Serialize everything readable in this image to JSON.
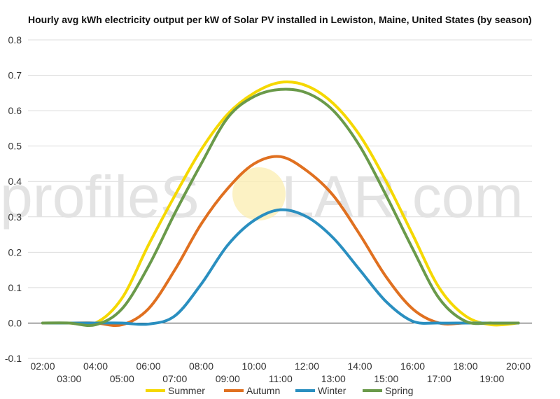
{
  "chart_data": {
    "type": "line",
    "title": "Hourly avg kWh electricity output per kW of Solar PV installed in Lewiston, Maine, United States (by season)",
    "xlabel": "",
    "ylabel": "",
    "ylim": [
      -0.1,
      0.8
    ],
    "yticks": [
      "-0.1",
      "0.0",
      "0.1",
      "0.2",
      "0.3",
      "0.4",
      "0.5",
      "0.6",
      "0.7",
      "0.8"
    ],
    "categories": [
      "02:00",
      "03:00",
      "04:00",
      "05:00",
      "06:00",
      "07:00",
      "08:00",
      "09:00",
      "10:00",
      "11:00",
      "12:00",
      "13:00",
      "14:00",
      "15:00",
      "16:00",
      "17:00",
      "18:00",
      "19:00",
      "20:00"
    ],
    "grid": true,
    "legend_position": "bottom",
    "series": [
      {
        "name": "Summer",
        "color": "#f5d800",
        "values": [
          0.0,
          0.0,
          0.0,
          0.07,
          0.22,
          0.36,
          0.49,
          0.59,
          0.65,
          0.68,
          0.67,
          0.62,
          0.53,
          0.4,
          0.25,
          0.1,
          0.02,
          -0.005,
          0.0
        ]
      },
      {
        "name": "Autumn",
        "color": "#e07020",
        "values": [
          0.0,
          0.0,
          0.0,
          -0.005,
          0.04,
          0.15,
          0.28,
          0.38,
          0.45,
          0.47,
          0.43,
          0.36,
          0.25,
          0.13,
          0.04,
          0.0,
          0.0,
          0.0,
          0.0
        ]
      },
      {
        "name": "Winter",
        "color": "#2a8fc0",
        "values": [
          0.0,
          0.0,
          0.0,
          0.0,
          -0.003,
          0.02,
          0.11,
          0.22,
          0.29,
          0.32,
          0.3,
          0.24,
          0.15,
          0.06,
          0.005,
          0.0,
          0.0,
          0.0,
          0.0
        ]
      },
      {
        "name": "Spring",
        "color": "#6a9a4a",
        "values": [
          0.0,
          0.0,
          -0.005,
          0.04,
          0.16,
          0.31,
          0.45,
          0.58,
          0.64,
          0.66,
          0.65,
          0.6,
          0.5,
          0.36,
          0.21,
          0.07,
          0.005,
          0.0,
          0.0
        ]
      }
    ]
  },
  "watermark": {
    "left": "profileS",
    "right": "LAR.com"
  }
}
